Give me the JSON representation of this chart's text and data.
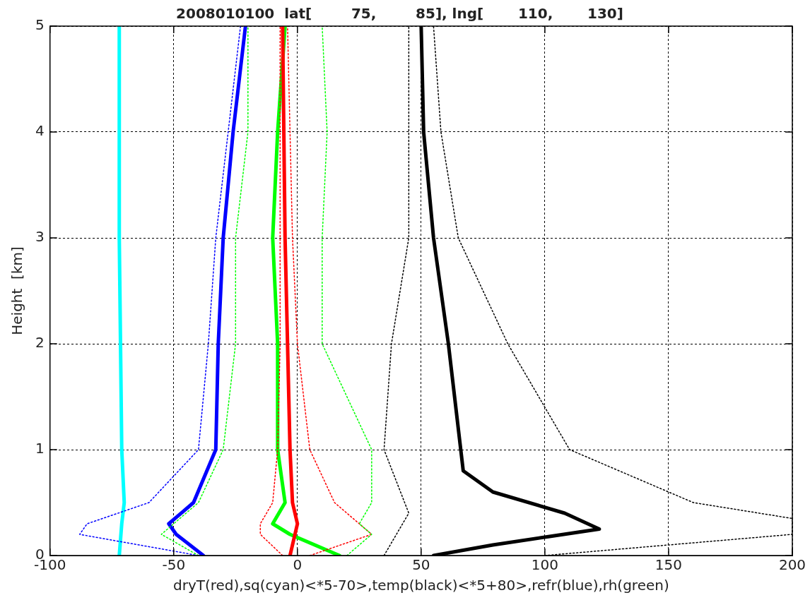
{
  "chart_data": {
    "type": "line",
    "title": "2008010100  lat[        75,        85], lng[       110,       130]",
    "xlabel": "dryT(red),sq(cyan)<*5-70>,temp(black)<*5+80>,refr(blue),rh(green)",
    "ylabel": "Height  [km]",
    "xlim": [
      -100,
      200
    ],
    "ylim": [
      0,
      5
    ],
    "xticks": [
      -100,
      -50,
      0,
      50,
      100,
      150,
      200
    ],
    "yticks": [
      0,
      1,
      2,
      3,
      4,
      5
    ],
    "grid": true,
    "legend": false,
    "marker": "none",
    "series": [
      {
        "color": "#00ff00",
        "line_style": "dotted",
        "x": [
          -40,
          -55,
          -50,
          -40,
          -30,
          -25,
          -25,
          -20,
          -20
        ],
        "values": [
          0,
          0.2,
          0.3,
          0.5,
          1,
          2,
          3,
          4,
          5
        ]
      },
      {
        "color": "#00ff00",
        "line_style": "dotted",
        "x": [
          20,
          30,
          25,
          30,
          30,
          10,
          10,
          12,
          10
        ],
        "values": [
          0,
          0.2,
          0.3,
          0.5,
          1,
          2,
          3,
          4,
          5
        ]
      },
      {
        "color": "#000000",
        "line_style": "dotted",
        "x": [
          35,
          40,
          45,
          40,
          35,
          38,
          45,
          45,
          45
        ],
        "values": [
          0,
          0.2,
          0.4,
          0.7,
          1,
          2,
          3,
          4,
          5
        ]
      },
      {
        "color": "#000000",
        "line_style": "dotted",
        "x": [
          100,
          200,
          200,
          160,
          110,
          85,
          65,
          58,
          55
        ],
        "values": [
          0,
          0.2,
          0.35,
          0.5,
          1,
          2,
          3,
          4,
          5
        ]
      },
      {
        "color": "#0000ff",
        "line_style": "dotted",
        "x": [
          -40,
          -88,
          -85,
          -60,
          -40,
          -36,
          -33,
          -28,
          -23
        ],
        "values": [
          0,
          0.2,
          0.3,
          0.5,
          1,
          2,
          3,
          4,
          5
        ]
      },
      {
        "color": "#ff0000",
        "line_style": "dotted",
        "x": [
          -6,
          -15,
          -15,
          -10,
          -8,
          -7,
          -7,
          -7,
          -7
        ],
        "values": [
          0,
          0.2,
          0.3,
          0.5,
          1,
          2,
          3,
          4,
          5
        ]
      },
      {
        "color": "#ff0000",
        "line_style": "dotted",
        "x": [
          5,
          30,
          25,
          15,
          5,
          0,
          -2,
          -3,
          -4
        ],
        "values": [
          0,
          0.2,
          0.3,
          0.5,
          1,
          2,
          3,
          4,
          5
        ]
      },
      {
        "color": "#00ffff",
        "line_style": "solid",
        "x": [
          -72,
          -71,
          -70,
          -71,
          -72,
          -72
        ],
        "values": [
          0,
          0.3,
          0.5,
          1,
          3,
          5
        ]
      },
      {
        "color": "#0000ff",
        "line_style": "solid",
        "x": [
          -38,
          -49,
          -52,
          -42,
          -33,
          -32,
          -30,
          -26,
          -21
        ],
        "values": [
          0,
          0.2,
          0.3,
          0.5,
          1,
          2,
          3,
          4,
          5
        ]
      },
      {
        "color": "#ff0000",
        "line_style": "solid",
        "x": [
          -3,
          -1,
          0,
          -2,
          -3,
          -4,
          -5,
          -5.5,
          -6
        ],
        "values": [
          0,
          0.2,
          0.3,
          0.5,
          1,
          2,
          3,
          4,
          5
        ]
      },
      {
        "color": "#00ff00",
        "line_style": "solid",
        "x": [
          17,
          -3,
          -10,
          -5,
          -8,
          -8,
          -10,
          -8,
          -5
        ],
        "values": [
          0,
          0.2,
          0.3,
          0.5,
          1,
          2,
          3,
          4,
          5
        ]
      },
      {
        "color": "#000000",
        "line_style": "solid",
        "x": [
          55,
          79,
          122,
          108,
          79,
          67,
          66,
          61,
          55,
          51,
          50
        ],
        "values": [
          0,
          0.1,
          0.25,
          0.4,
          0.6,
          0.8,
          1,
          2,
          3,
          4,
          5
        ]
      }
    ]
  }
}
